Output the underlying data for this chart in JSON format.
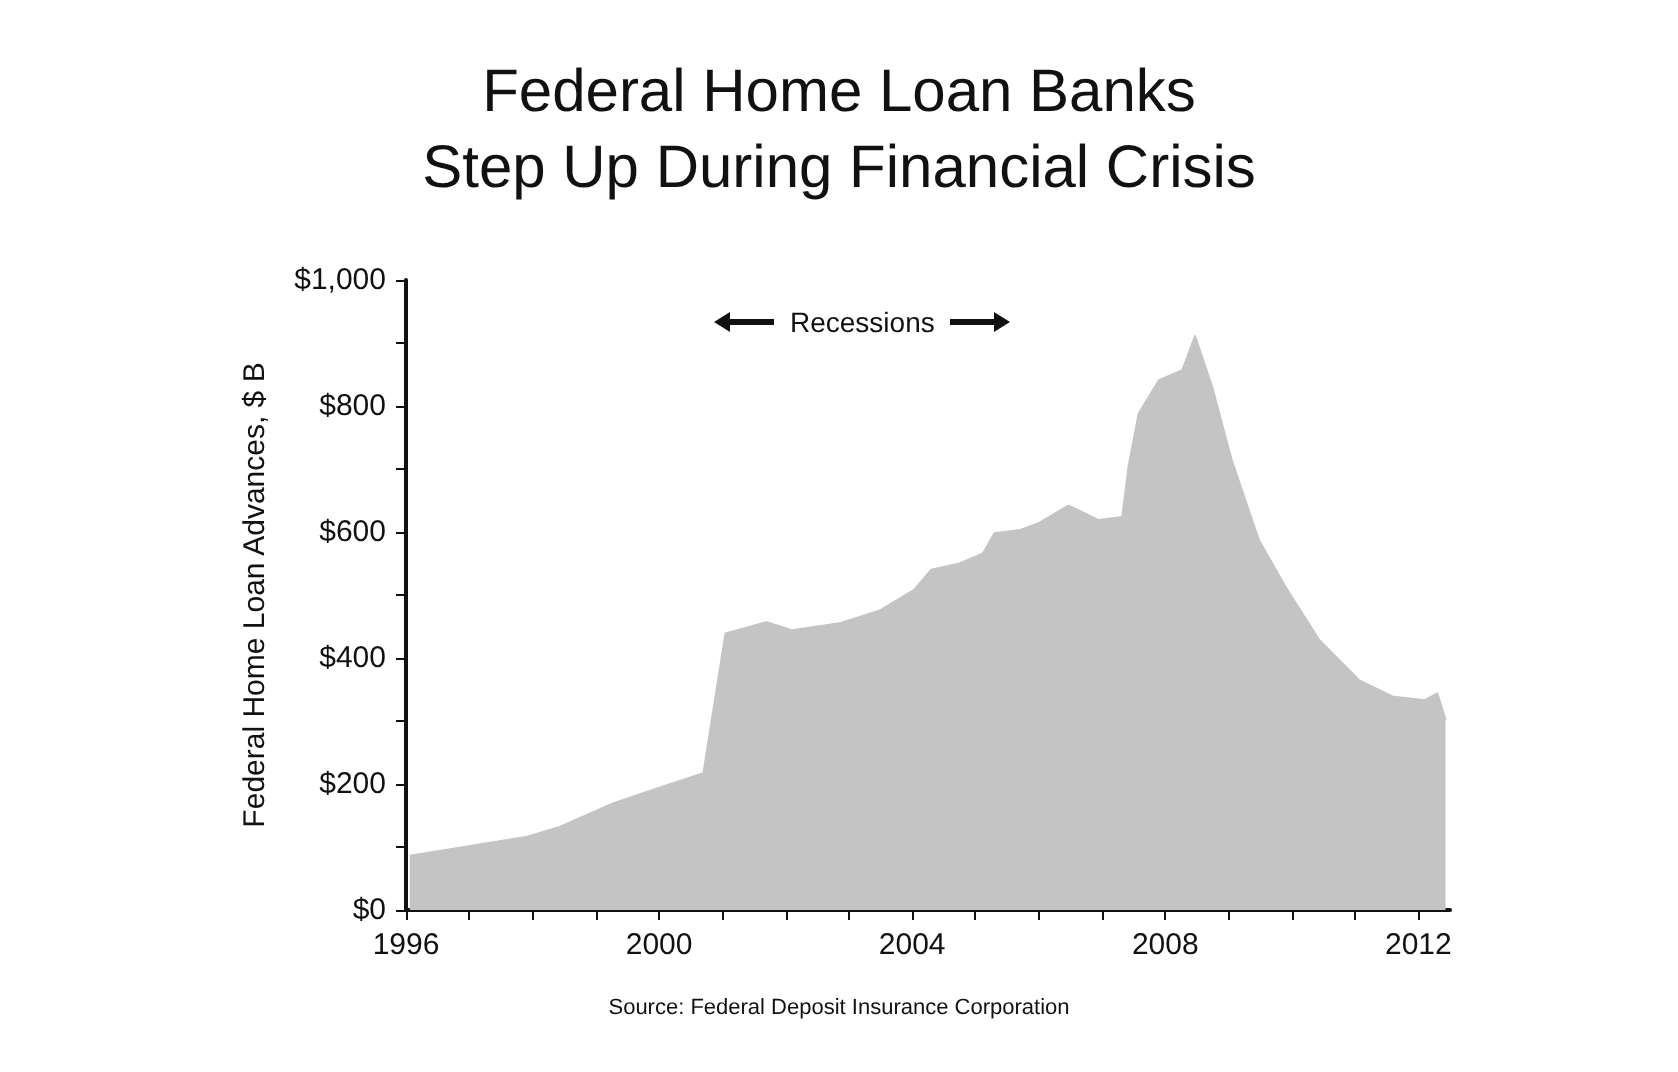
{
  "chart_data": {
    "type": "area",
    "title": "Federal Home Loan Banks\nStep Up During Financial Crisis",
    "ylabel": "Federal Home Loan Advances, $ B",
    "annotations": [
      "Recessions",
      "Source: Federal Deposit Insurance Corporation"
    ],
    "x": [
      1996.06,
      1996.6,
      1997.9,
      1998.43,
      1999.27,
      2000.06,
      2000.7,
      2000.9,
      2001.05,
      2001.7,
      2002.1,
      2002.85,
      2003.5,
      2004.03,
      2004.3,
      2004.75,
      2005.12,
      2005.3,
      2005.7,
      2006.0,
      2006.47,
      2006.95,
      2007.32,
      2007.42,
      2007.58,
      2007.9,
      2008.27,
      2008.47,
      2008.74,
      2009.05,
      2009.48,
      2009.9,
      2010.43,
      2011.06,
      2011.59,
      2012.1,
      2012.3,
      2012.43
    ],
    "series": [
      {
        "color": "#c4c4c4",
        "values": [
          86,
          95,
          116,
          132,
          169,
          196,
          217,
          344,
          439,
          457,
          444,
          455,
          476,
          508,
          540,
          550,
          566,
          598,
          603,
          614,
          642,
          619,
          624,
          704,
          788,
          841,
          857,
          911,
          831,
          714,
          587,
          513,
          429,
          365,
          339,
          333,
          344,
          302
        ]
      }
    ],
    "xlim": [
      1996,
      2012.5
    ],
    "xticks": [
      1996,
      {
        "value": 1997,
        "label": null
      },
      {
        "value": 1998,
        "label": null
      },
      {
        "value": 1999,
        "label": null
      },
      2000,
      {
        "value": 2001,
        "label": null
      },
      {
        "value": 2002,
        "label": null
      },
      {
        "value": 2003,
        "label": null
      },
      2004,
      {
        "value": 2005,
        "label": null
      },
      {
        "value": 2006,
        "label": null
      },
      {
        "value": 2007,
        "label": null
      },
      2008,
      {
        "value": 2009,
        "label": null
      },
      {
        "value": 2010,
        "label": null
      },
      {
        "value": 2011,
        "label": null
      },
      2012
    ],
    "ylim": [
      0,
      1000
    ],
    "yticks": [
      {
        "value": 0,
        "label": "$0"
      },
      {
        "value": 100,
        "label": null
      },
      {
        "value": 200,
        "label": "$200"
      },
      {
        "value": 300,
        "label": null
      },
      {
        "value": 400,
        "label": "$400"
      },
      {
        "value": 500,
        "label": null
      },
      {
        "value": 600,
        "label": "$600"
      },
      {
        "value": 700,
        "label": null
      },
      {
        "value": 800,
        "label": "$800"
      },
      {
        "value": 900,
        "label": null
      },
      {
        "value": 1000,
        "label": "$1,000"
      }
    ],
    "line_style": "solid"
  }
}
